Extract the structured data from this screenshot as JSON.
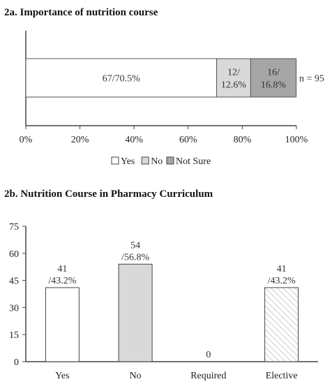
{
  "chart_data": [
    {
      "type": "bar",
      "orientation": "horizontal-stacked-percent",
      "title": "2a. Importance of nutrition course",
      "xlim": [
        0,
        100
      ],
      "x_ticks": [
        "0%",
        "20%",
        "40%",
        "60%",
        "80%",
        "100%"
      ],
      "series": [
        {
          "name": "Yes",
          "value": 70.5,
          "label_lines": [
            "67/70.5%"
          ],
          "color": "#ffffff"
        },
        {
          "name": "No",
          "value": 12.6,
          "label_lines": [
            "12/",
            "12.6%"
          ],
          "color": "#d9d9d9"
        },
        {
          "name": "Not Sure",
          "value": 16.8,
          "label_lines": [
            "16/",
            "16.8%"
          ],
          "color": "#a6a6a6"
        }
      ],
      "annotation": "n = 95",
      "legend": [
        "Yes",
        "No",
        "Not Sure"
      ],
      "legend_position": "bottom"
    },
    {
      "type": "bar",
      "title": "2b. Nutrition Course in Pharmacy Curriculum",
      "categories": [
        "Yes",
        "No",
        "Required",
        "Elective"
      ],
      "values": [
        41,
        54,
        0,
        41
      ],
      "data_labels": [
        [
          "41",
          "/43.2%"
        ],
        [
          "54",
          "/56.8%"
        ],
        [
          "0"
        ],
        [
          "41",
          "/43.2%"
        ]
      ],
      "fills": [
        "#ffffff",
        "#d9d9d9",
        "#ffffff",
        "hatch"
      ],
      "ylim": [
        0,
        75
      ],
      "y_ticks": [
        "0",
        "15",
        "30",
        "45",
        "60",
        "75"
      ]
    }
  ]
}
